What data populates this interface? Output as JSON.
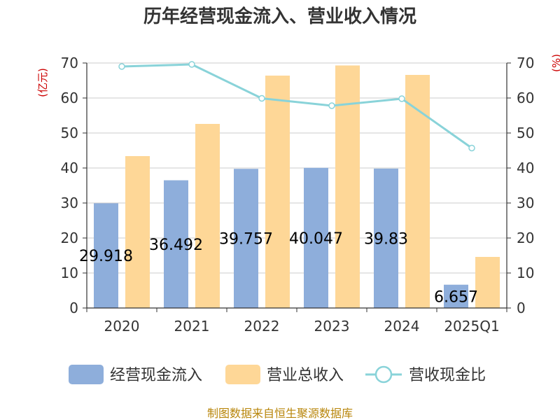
{
  "chart_data": {
    "type": "bar",
    "title": "历年经营现金流入、营业收入情况",
    "ylabel_left": "(亿元)",
    "ylabel_right": "(%)",
    "categories": [
      "2020",
      "2021",
      "2022",
      "2023",
      "2024",
      "2025Q1"
    ],
    "ylim_left": [
      0,
      70
    ],
    "ylim_right": [
      0,
      70
    ],
    "yticks": [
      0,
      10,
      20,
      30,
      40,
      50,
      60,
      70
    ],
    "grid": true,
    "legend_position": "bottom",
    "series": [
      {
        "name": "经营现金流入",
        "kind": "bar",
        "axis": "left",
        "color": "#8eaedb",
        "values": [
          29.918,
          36.492,
          39.757,
          40.047,
          39.83,
          6.657
        ],
        "labels": [
          "29.918",
          "36.492",
          "39.757",
          "40.047",
          "39.83",
          "6.657"
        ]
      },
      {
        "name": "营业总收入",
        "kind": "bar",
        "axis": "left",
        "color": "#fed797",
        "values": [
          43.4,
          52.6,
          66.4,
          69.3,
          66.6,
          14.6
        ]
      },
      {
        "name": "营收现金比",
        "kind": "line",
        "axis": "right",
        "color": "#89d3d9",
        "values": [
          69.0,
          69.6,
          59.9,
          57.8,
          59.8,
          45.7
        ]
      }
    ]
  },
  "footer": {
    "source": "制图数据来自恒生聚源数据库"
  }
}
